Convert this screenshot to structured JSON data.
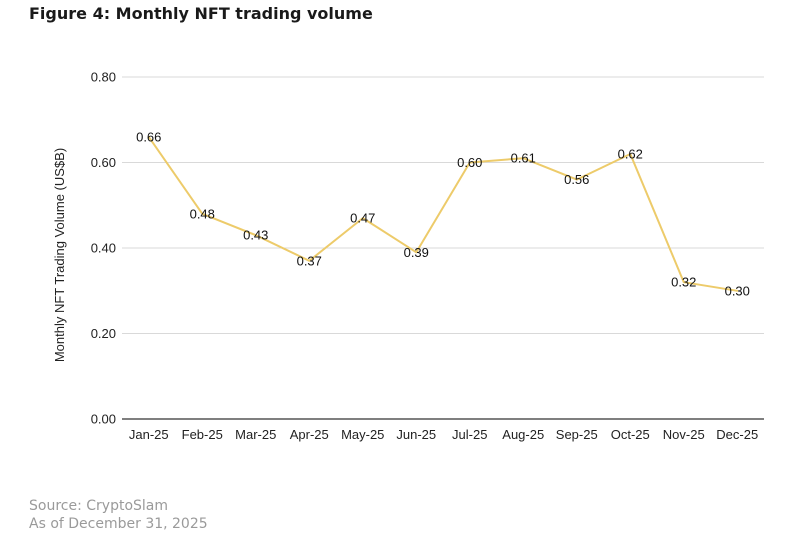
{
  "figure": {
    "title": "Figure 4: Monthly NFT trading volume"
  },
  "chart_data": {
    "type": "line",
    "title": "",
    "xlabel": "",
    "ylabel": "Monthly NFT Trading Volume (US$B)",
    "ylim": [
      0,
      0.8
    ],
    "yticks": [
      "0.00",
      "0.20",
      "0.40",
      "0.60",
      "0.80"
    ],
    "grid": true,
    "categories": [
      "Jan-25",
      "Feb-25",
      "Mar-25",
      "Apr-25",
      "May-25",
      "Jun-25",
      "Jul-25",
      "Aug-25",
      "Sep-25",
      "Oct-25",
      "Nov-25",
      "Dec-25"
    ],
    "series": [
      {
        "values": [
          0.66,
          0.48,
          0.43,
          0.37,
          0.47,
          0.39,
          0.6,
          0.61,
          0.56,
          0.62,
          0.32,
          0.3
        ],
        "labels": [
          "0.66",
          "0.48",
          "0.43",
          "0.37",
          "0.47",
          "0.39",
          "0.60",
          "0.61",
          "0.56",
          "0.62",
          "0.32",
          "0.30"
        ],
        "color": "#EDCB6A"
      }
    ]
  },
  "source": {
    "line1": "Source: CryptoSlam",
    "line2": "As of December 31, 2025"
  }
}
